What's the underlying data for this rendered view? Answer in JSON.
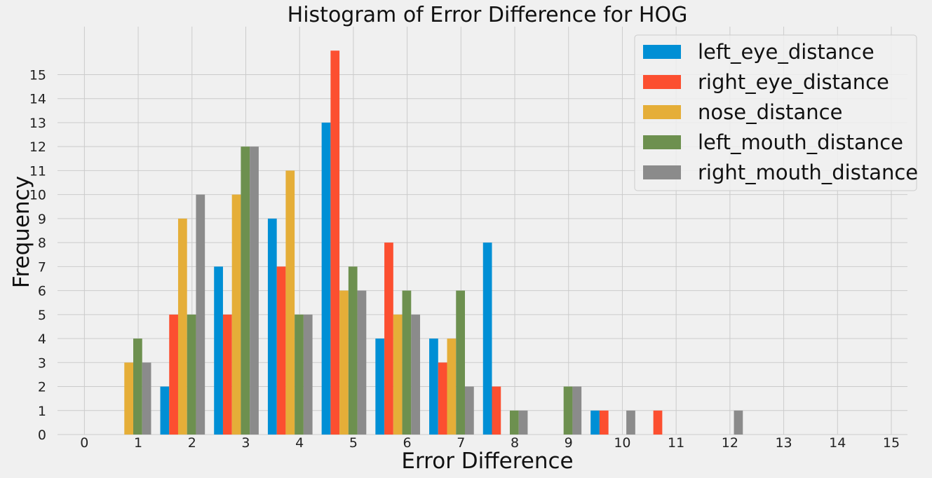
{
  "chart_data": {
    "type": "bar",
    "title": "Histogram of Error Difference for HOG",
    "xlabel": "Error Difference",
    "ylabel": "Frequency",
    "xlim": [
      -0.5,
      15.3
    ],
    "ylim": [
      0,
      17
    ],
    "xticks": [
      0,
      1,
      2,
      3,
      4,
      5,
      6,
      7,
      8,
      9,
      10,
      11,
      12,
      13,
      14,
      15
    ],
    "yticks": [
      0,
      1,
      2,
      3,
      4,
      5,
      6,
      7,
      8,
      9,
      10,
      11,
      12,
      13,
      14,
      15
    ],
    "grid": true,
    "legend_position": "top-right",
    "bins": [
      0,
      1,
      2,
      3,
      4,
      5,
      6,
      7,
      8,
      9,
      10,
      11,
      12
    ],
    "series": [
      {
        "name": "left_eye_distance",
        "color": "#008fd5",
        "values": [
          0,
          2,
          7,
          9,
          13,
          4,
          4,
          8,
          0,
          1,
          0,
          0,
          0
        ]
      },
      {
        "name": "right_eye_distance",
        "color": "#fc4f30",
        "values": [
          0,
          5,
          5,
          7,
          16,
          8,
          3,
          2,
          0,
          1,
          1,
          0,
          0
        ]
      },
      {
        "name": "nose_distance",
        "color": "#e5ae38",
        "values": [
          3,
          9,
          10,
          11,
          6,
          5,
          4,
          0,
          0,
          0,
          0,
          0,
          0
        ]
      },
      {
        "name": "left_mouth_distance",
        "color": "#6d904f",
        "values": [
          4,
          5,
          12,
          5,
          7,
          6,
          6,
          1,
          2,
          0,
          0,
          0,
          0
        ]
      },
      {
        "name": "right_mouth_distance",
        "color": "#8b8b8b",
        "values": [
          3,
          10,
          12,
          5,
          6,
          5,
          2,
          1,
          2,
          1,
          0,
          1,
          0
        ]
      }
    ]
  }
}
